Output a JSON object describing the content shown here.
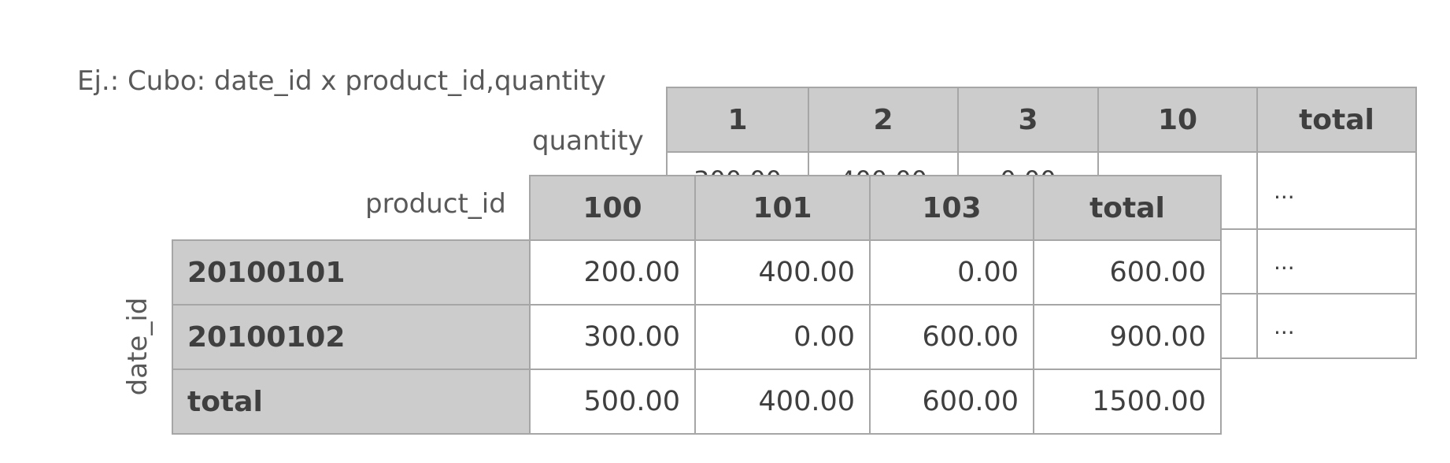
{
  "title": "Ej.: Cubo: date_id x product_id,quantity",
  "dimension_labels": {
    "quantity": "quantity",
    "product_id": "product_id",
    "date_id": "date_id"
  },
  "back_table": {
    "headers": [
      "1",
      "2",
      "3",
      "10",
      "total"
    ],
    "row1_partial": [
      "300.00",
      "400.00",
      "0.00"
    ],
    "ellipsis": [
      "...",
      "...",
      "..."
    ]
  },
  "front_table": {
    "column_headers": [
      "100",
      "101",
      "103",
      "total"
    ],
    "rows": [
      {
        "label": "20100101",
        "values": [
          "200.00",
          "400.00",
          "0.00",
          "600.00"
        ]
      },
      {
        "label": "20100102",
        "values": [
          "300.00",
          "0.00",
          "600.00",
          "900.00"
        ]
      },
      {
        "label": "total",
        "values": [
          "500.00",
          "400.00",
          "600.00",
          "1500.00"
        ]
      }
    ]
  },
  "colors": {
    "header_fill": "#cccccc",
    "border": "#a6a6a6",
    "text": "#3f3f3f",
    "label_text": "#595959"
  }
}
